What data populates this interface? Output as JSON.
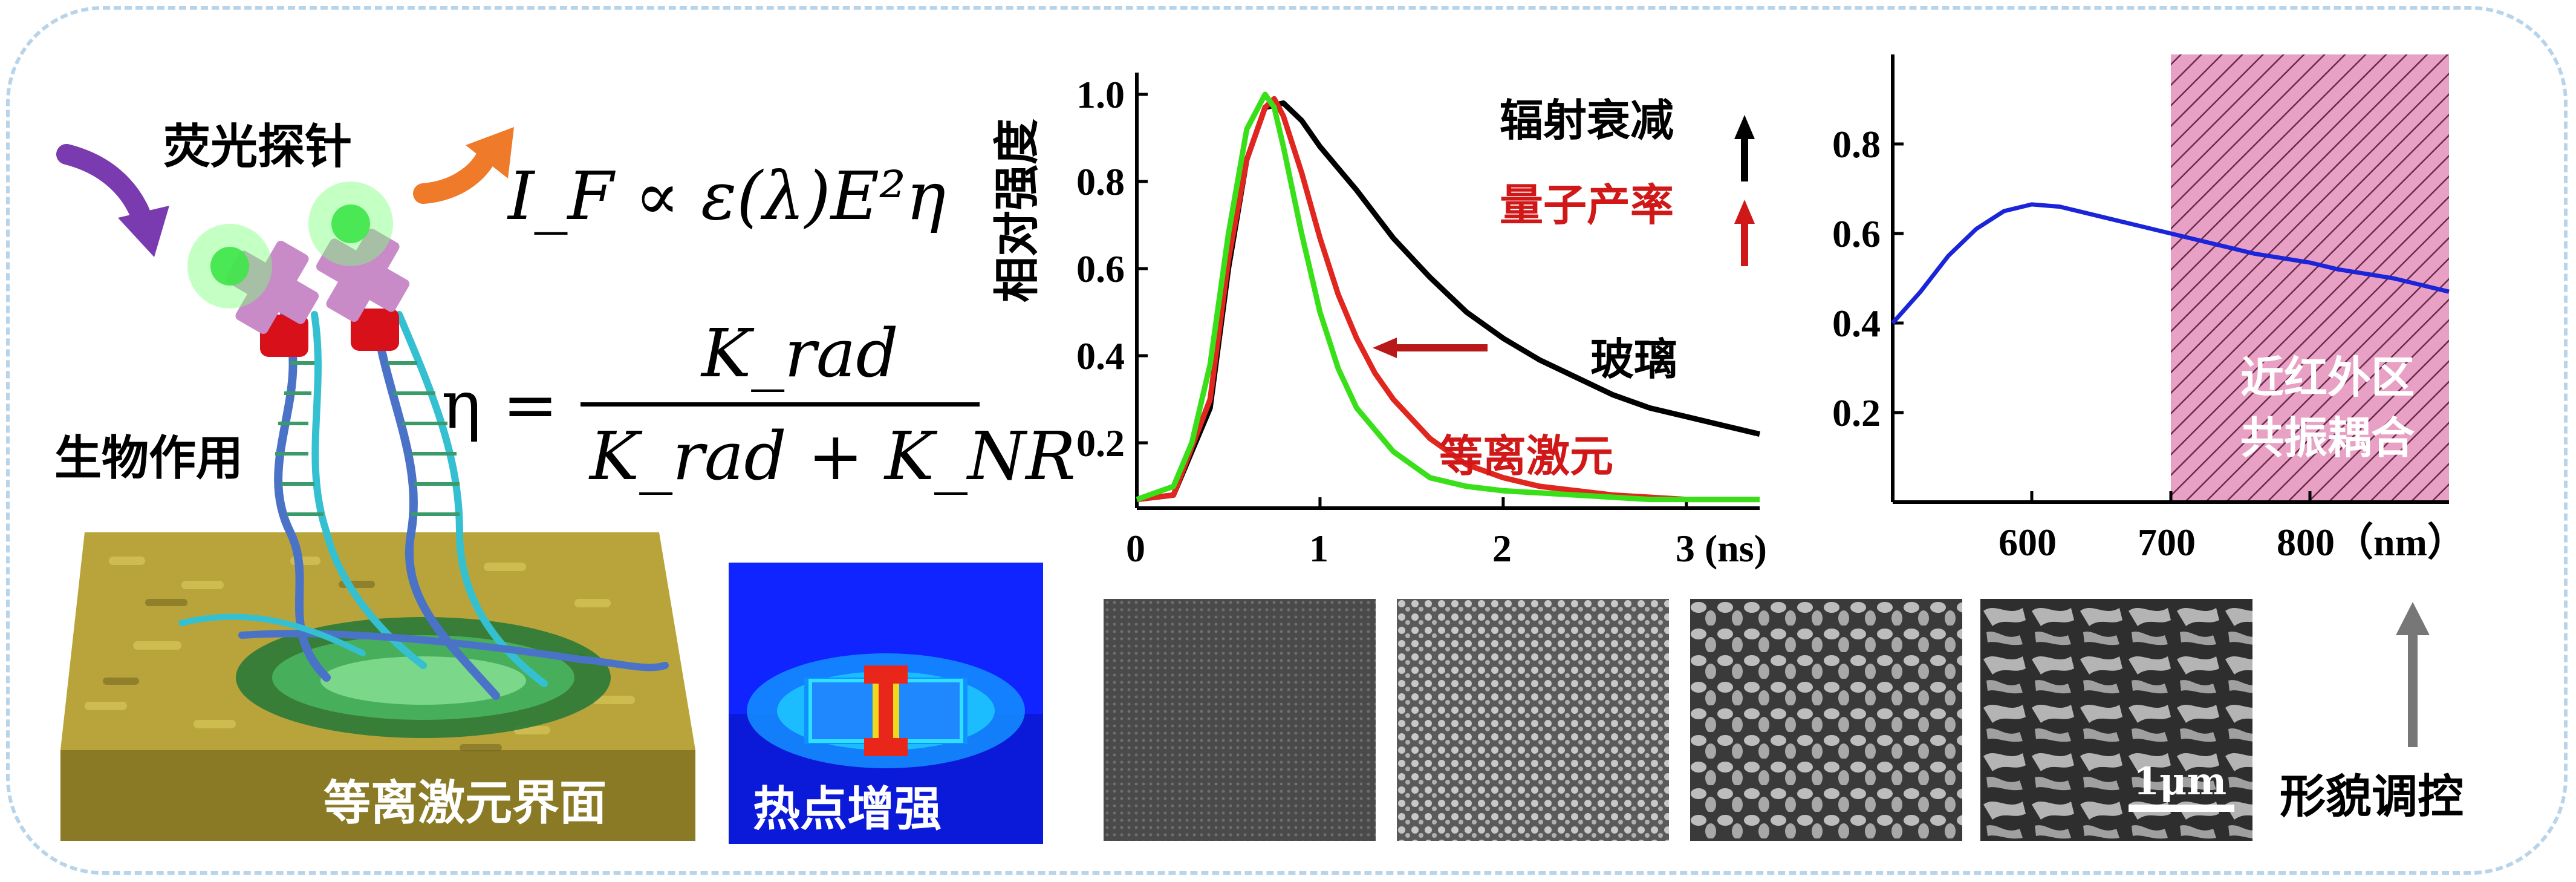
{
  "left": {
    "probe_label": "荧光探针",
    "bio_label": "生物作用",
    "interface_label": "等离激元界面",
    "hotspot_label": "热点增强"
  },
  "equations": {
    "eq1": "I_F ∝ ε(λ)E²η",
    "eq2_lhs": "η =",
    "eq2_num": "K_rad",
    "eq2_den": "K_rad + K_NR"
  },
  "decay_chart": {
    "ylabel": "相对强度",
    "yticks": [
      "0.2",
      "0.4",
      "0.6",
      "0.8",
      "1.0"
    ],
    "xticks": [
      "0",
      "1",
      "2",
      "3 (ns)"
    ],
    "legend_rad": "辐射衰减",
    "legend_qy": "量子产率",
    "label_glass": "玻璃",
    "label_plasmon": "等离激元"
  },
  "spectrum_chart": {
    "yticks": [
      "0.2",
      "0.4",
      "0.6",
      "0.8"
    ],
    "xticks": [
      "600",
      "700",
      "800（nm）"
    ],
    "region_label_1": "近红外区",
    "region_label_2": "共振耦合"
  },
  "sem": {
    "scalebar": "1μm",
    "morph_label": "形貌调控"
  },
  "colors": {
    "glass_curve": "#000000",
    "plasmon_curve": "#e0261e",
    "probe_curve": "#39e019",
    "spectrum_curve": "#1a24d8",
    "nir_region": "#e8a0c4",
    "arrow_purple": "#7a3bb0",
    "arrow_orange": "#ef7a2a",
    "red_text": "#d01818"
  },
  "chart_data": [
    {
      "type": "line",
      "ylabel": "相对强度",
      "xlabel": "(ns)",
      "xlim": [
        0,
        3.4
      ],
      "ylim": [
        0.05,
        1.05
      ],
      "series": [
        {
          "name": "玻璃",
          "x": [
            0.0,
            0.2,
            0.4,
            0.5,
            0.6,
            0.7,
            0.8,
            0.9,
            1.0,
            1.2,
            1.4,
            1.6,
            1.8,
            2.0,
            2.2,
            2.4,
            2.6,
            2.8,
            3.0,
            3.2,
            3.4
          ],
          "y": [
            0.07,
            0.08,
            0.28,
            0.6,
            0.85,
            0.97,
            0.98,
            0.94,
            0.88,
            0.78,
            0.67,
            0.58,
            0.5,
            0.44,
            0.39,
            0.35,
            0.31,
            0.28,
            0.26,
            0.24,
            0.22
          ]
        },
        {
          "name": "等离激元",
          "x": [
            0.0,
            0.2,
            0.4,
            0.5,
            0.6,
            0.7,
            0.75,
            0.8,
            0.9,
            1.0,
            1.1,
            1.2,
            1.3,
            1.4,
            1.6,
            1.8,
            2.0,
            2.2,
            2.6,
            3.0,
            3.4
          ],
          "y": [
            0.07,
            0.08,
            0.3,
            0.62,
            0.85,
            0.97,
            0.99,
            0.95,
            0.82,
            0.67,
            0.54,
            0.44,
            0.36,
            0.3,
            0.21,
            0.15,
            0.12,
            0.1,
            0.08,
            0.07,
            0.07
          ]
        },
        {
          "name": "",
          "x": [
            0.0,
            0.2,
            0.3,
            0.4,
            0.5,
            0.6,
            0.7,
            0.75,
            0.8,
            0.9,
            1.0,
            1.1,
            1.2,
            1.4,
            1.6,
            1.8,
            2.0,
            2.4,
            2.8,
            3.4
          ],
          "y": [
            0.07,
            0.1,
            0.2,
            0.38,
            0.68,
            0.92,
            1.0,
            0.97,
            0.88,
            0.68,
            0.5,
            0.37,
            0.28,
            0.18,
            0.12,
            0.1,
            0.09,
            0.08,
            0.07,
            0.07
          ]
        }
      ]
    },
    {
      "type": "line",
      "xlabel": "（nm）",
      "xlim": [
        500,
        900
      ],
      "ylim": [
        0.0,
        1.0
      ],
      "series": [
        {
          "name": "",
          "x": [
            500,
            520,
            540,
            560,
            580,
            600,
            620,
            640,
            660,
            680,
            700,
            720,
            740,
            760,
            780,
            800,
            820,
            840,
            860,
            880,
            900
          ],
          "y": [
            0.4,
            0.47,
            0.55,
            0.61,
            0.65,
            0.665,
            0.66,
            0.645,
            0.63,
            0.615,
            0.6,
            0.585,
            0.57,
            0.555,
            0.545,
            0.535,
            0.52,
            0.51,
            0.5,
            0.485,
            0.47
          ]
        }
      ]
    }
  ]
}
